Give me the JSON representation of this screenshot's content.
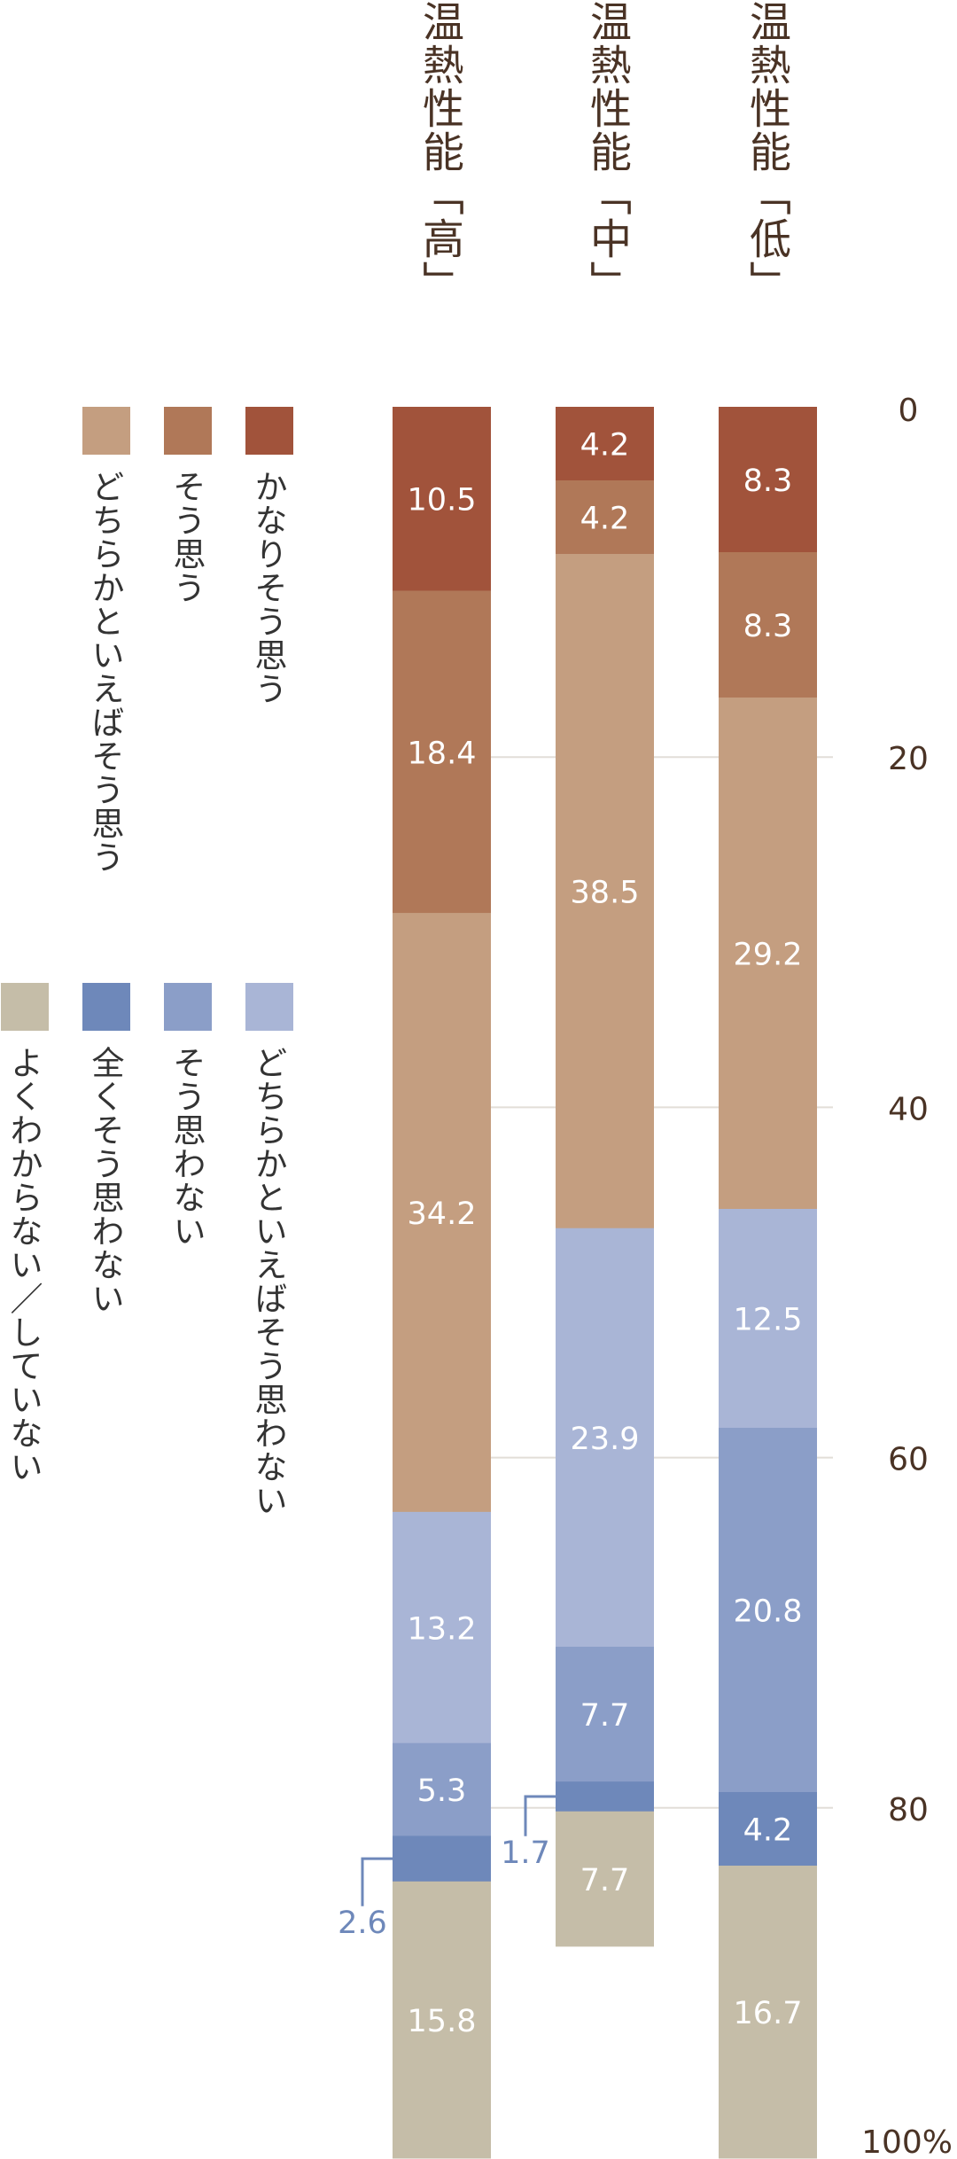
{
  "chart_data": {
    "type": "bar",
    "orientation": "vertical-stacked-100",
    "categories": [
      "温熱性能「高」",
      "温熱性能「中」",
      "温熱性能「低」"
    ],
    "series": [
      {
        "name": "かなりそう思う",
        "color": "#a1533b",
        "values": [
          10.5,
          4.2,
          8.3
        ]
      },
      {
        "name": "そう思う",
        "color": "#b07858",
        "values": [
          18.4,
          4.2,
          8.3
        ]
      },
      {
        "name": "どちらかといえばそう思う",
        "color": "#c49e80",
        "values": [
          34.2,
          38.5,
          29.2
        ]
      },
      {
        "name": "どちらかといえばそう思わない",
        "color": "#a9b5d6",
        "values": [
          13.2,
          23.9,
          12.5
        ]
      },
      {
        "name": "そう思わない",
        "color": "#8b9ec8",
        "values": [
          5.3,
          7.7,
          20.8
        ]
      },
      {
        "name": "全くそう思わない",
        "color": "#6e88ba",
        "values": [
          2.6,
          1.7,
          4.2
        ]
      },
      {
        "name": "よくわからない／していない",
        "color": "#c5bda8",
        "values": [
          15.8,
          7.7,
          16.7
        ]
      }
    ],
    "y_ticks": [
      "0",
      "20",
      "40",
      "60",
      "80",
      "100%"
    ],
    "ylim": [
      0,
      100
    ],
    "grid": true,
    "legend_placement": "left",
    "label_color_inside": "#ffffff",
    "label_color_outside": "#6e88ba"
  }
}
